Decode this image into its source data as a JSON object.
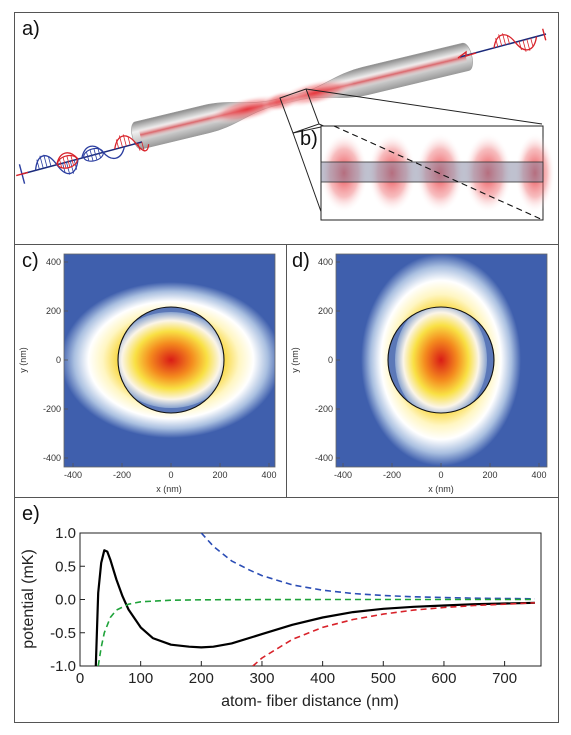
{
  "figure": {
    "panel_labels": {
      "a": "a)",
      "b": "b)",
      "c": "c)",
      "d": "d)",
      "e": "e)"
    },
    "colors": {
      "fiber": "#bdbdbd",
      "red": "#d8222a",
      "blue": "#2b3ea0",
      "green": "#1fa33a",
      "heat_low": "#3b5ba8",
      "heat_mid": "#ffffff",
      "heat_high": "#d21c1c"
    }
  },
  "heatmaps": [
    {
      "panel": "c",
      "xlabel": "x (nm)",
      "ylabel": "y (nm)",
      "x_ticks": [
        "-400",
        "-200",
        "0",
        "200",
        "400"
      ],
      "y_ticks": [
        "400",
        "200",
        "0",
        "-200",
        "-400"
      ],
      "fiber_radius_nm": 250,
      "elongation": "horizontal"
    },
    {
      "panel": "d",
      "xlabel": "x (nm)",
      "ylabel": "y (nm)",
      "x_ticks": [
        "-400",
        "-200",
        "0",
        "200",
        "400"
      ],
      "y_ticks": [
        "400",
        "200",
        "0",
        "-200",
        "-400"
      ],
      "fiber_radius_nm": 250,
      "elongation": "vertical"
    }
  ],
  "chart_data": {
    "type": "line",
    "xlabel": "atom- fiber distance (nm)",
    "ylabel": "potential (mK)",
    "xlim": [
      0,
      760
    ],
    "ylim": [
      -1.0,
      1.0
    ],
    "x_ticks": [
      "0",
      "100",
      "200",
      "300",
      "400",
      "500",
      "600",
      "700"
    ],
    "y_ticks": [
      "1.0",
      "0.5",
      "0.0",
      "-0.5",
      "-1.0"
    ],
    "series": [
      {
        "color": "#000000",
        "style": "solid",
        "x": [
          26,
          30,
          35,
          40,
          45,
          50,
          60,
          70,
          80,
          100,
          120,
          150,
          180,
          200,
          220,
          250,
          300,
          350,
          400,
          450,
          500,
          550,
          600,
          650,
          700,
          750
        ],
        "y": [
          -1.0,
          0.1,
          0.55,
          0.74,
          0.72,
          0.6,
          0.3,
          0.05,
          -0.15,
          -0.42,
          -0.58,
          -0.68,
          -0.71,
          -0.72,
          -0.71,
          -0.66,
          -0.52,
          -0.38,
          -0.27,
          -0.19,
          -0.14,
          -0.11,
          -0.09,
          -0.07,
          -0.06,
          -0.05
        ]
      },
      {
        "color": "#2b4db5",
        "style": "dashed",
        "x": [
          200,
          220,
          250,
          280,
          300,
          350,
          400,
          450,
          500,
          550,
          600,
          650,
          700,
          750
        ],
        "y": [
          1.0,
          0.8,
          0.58,
          0.44,
          0.36,
          0.22,
          0.14,
          0.09,
          0.06,
          0.04,
          0.03,
          0.02,
          0.015,
          0.01
        ]
      },
      {
        "color": "#d8222a",
        "style": "dashed",
        "x": [
          285,
          300,
          350,
          400,
          450,
          500,
          550,
          600,
          650,
          700,
          750
        ],
        "y": [
          -1.0,
          -0.88,
          -0.6,
          -0.42,
          -0.3,
          -0.22,
          -0.16,
          -0.12,
          -0.09,
          -0.07,
          -0.05
        ]
      },
      {
        "color": "#1fa33a",
        "style": "dashed",
        "x": [
          30,
          35,
          40,
          50,
          60,
          80,
          100,
          150,
          200,
          300,
          400,
          500,
          600,
          700,
          750
        ],
        "y": [
          -1.0,
          -0.72,
          -0.5,
          -0.27,
          -0.16,
          -0.07,
          -0.035,
          -0.01,
          -0.004,
          -0.001,
          0.0,
          0.0,
          0.0,
          0.0,
          0.0
        ]
      }
    ]
  }
}
